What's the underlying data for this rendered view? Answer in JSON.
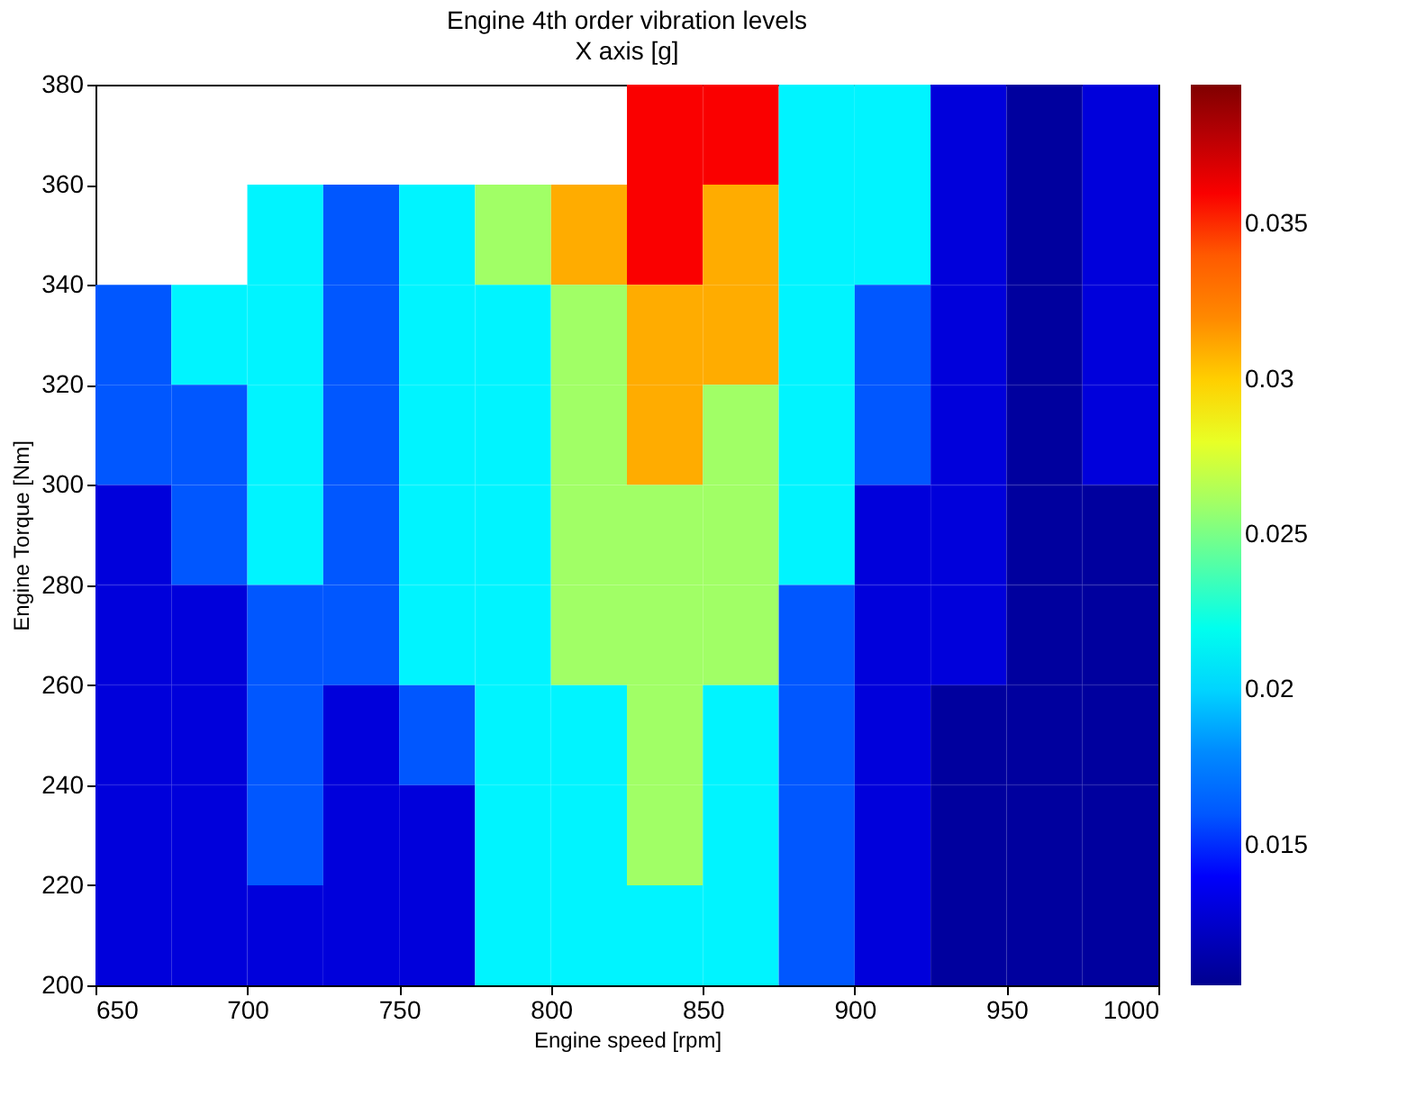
{
  "chart_data": {
    "type": "heatmap",
    "title": "Engine 4th order vibration levels",
    "subtitle": "X axis [g]",
    "xlabel": "Engine speed [rpm]",
    "ylabel": "Engine Torque [Nm]",
    "xlim": [
      650,
      1000
    ],
    "xticks": [
      650,
      700,
      750,
      800,
      850,
      900,
      950,
      1000
    ],
    "ylim": [
      200,
      380
    ],
    "yticks": [
      200,
      220,
      240,
      260,
      280,
      300,
      320,
      340,
      360,
      380
    ],
    "clim": [
      0.0105,
      0.0395
    ],
    "cticks": [
      0.015,
      0.02,
      0.025,
      0.03,
      0.035
    ],
    "cells": [
      [
        null,
        null,
        null,
        null,
        null,
        null,
        null,
        0.036,
        0.036,
        0.021,
        0.021,
        0.013,
        0.011,
        0.013
      ],
      [
        null,
        null,
        0.021,
        0.016,
        0.021,
        0.026,
        0.031,
        0.036,
        0.031,
        0.021,
        0.021,
        0.013,
        0.011,
        0.013
      ],
      [
        0.016,
        0.021,
        0.021,
        0.016,
        0.021,
        0.021,
        0.026,
        0.031,
        0.031,
        0.021,
        0.016,
        0.013,
        0.011,
        0.013
      ],
      [
        0.016,
        0.016,
        0.021,
        0.016,
        0.021,
        0.021,
        0.026,
        0.031,
        0.026,
        0.021,
        0.016,
        0.013,
        0.011,
        0.013
      ],
      [
        0.013,
        0.016,
        0.021,
        0.016,
        0.021,
        0.021,
        0.026,
        0.026,
        0.026,
        0.021,
        0.013,
        0.013,
        0.011,
        0.011
      ],
      [
        0.013,
        0.013,
        0.016,
        0.016,
        0.021,
        0.021,
        0.026,
        0.026,
        0.026,
        0.016,
        0.013,
        0.013,
        0.011,
        0.011
      ],
      [
        0.013,
        0.013,
        0.016,
        0.013,
        0.016,
        0.021,
        0.021,
        0.026,
        0.021,
        0.016,
        0.013,
        0.011,
        0.011,
        0.011
      ],
      [
        0.013,
        0.013,
        0.016,
        0.013,
        0.013,
        0.021,
        0.021,
        0.026,
        0.021,
        0.016,
        0.013,
        0.011,
        0.011,
        0.011
      ],
      [
        0.013,
        0.013,
        0.013,
        0.013,
        0.013,
        0.021,
        0.021,
        0.021,
        0.021,
        0.016,
        0.013,
        0.011,
        0.011,
        0.011
      ]
    ],
    "grid": false
  }
}
